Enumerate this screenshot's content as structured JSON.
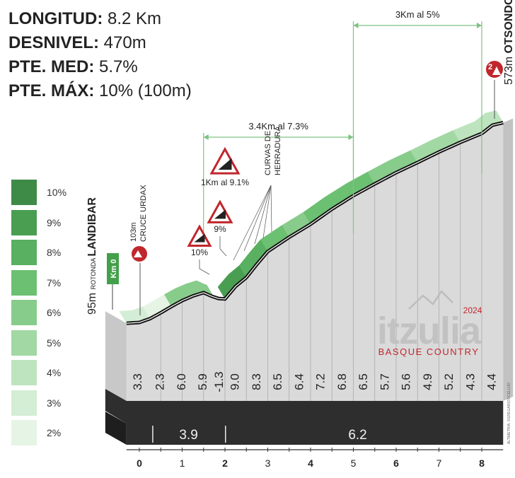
{
  "stats": [
    {
      "label": "LONGITUD:",
      "value": "8.2 Km"
    },
    {
      "label": "DESNIVEL:",
      "value": "470m"
    },
    {
      "label": "PTE. MED:",
      "value": "5.7%"
    },
    {
      "label": "PTE. MÁX:",
      "value": "10% (100m)"
    }
  ],
  "legend": [
    {
      "label": "10%",
      "color": "#3e8a47"
    },
    {
      "label": "9%",
      "color": "#4a9e52"
    },
    {
      "label": "8%",
      "color": "#58b060"
    },
    {
      "label": "7%",
      "color": "#6cc071"
    },
    {
      "label": "6%",
      "color": "#88cc8b"
    },
    {
      "label": "5%",
      "color": "#a2d8a4"
    },
    {
      "label": "4%",
      "color": "#bde4be"
    },
    {
      "label": "3%",
      "color": "#d4edd5"
    },
    {
      "label": "2%",
      "color": "#e6f4e6"
    }
  ],
  "annotations": {
    "start": {
      "alt": "95m",
      "small": "ROTONDA",
      "name": "LANDIBAR"
    },
    "km0": "Km 0",
    "sprint": {
      "alt": "103m",
      "name": "CRUCE URDAX"
    },
    "finish": {
      "alt": "573m",
      "name": "OTSONDO",
      "category": "2"
    },
    "horquillas": [
      "CURVAS DE",
      "HERRADURA"
    ],
    "seg1": "3.4Km al 7.3%",
    "seg2": "3Km al 5%",
    "warn1": "1Km al 9.1%",
    "warn2": "9%",
    "warn3": "10%"
  },
  "brand": {
    "name": "itzulia",
    "year": "2024",
    "sub": "BASQUE COUNTRY",
    "credit": "ALTIMETRIA: ©GREGARIOS/CELUJO"
  },
  "colors": {
    "ink": "#222222",
    "brandRed": "#c0272d",
    "side": "#c8c8c8",
    "baseDark": "#2e2e2e"
  },
  "chart_data": {
    "type": "area",
    "xlabel": "",
    "ylabel": "",
    "xlim": [
      0,
      8.2
    ],
    "x_ticks": [
      0,
      1,
      2,
      3,
      4,
      5,
      6,
      7,
      8
    ],
    "profile": {
      "x": [
        -0.3,
        0,
        0.25,
        0.5,
        0.75,
        1.0,
        1.25,
        1.5,
        1.7,
        1.85,
        2.0,
        2.25,
        2.5,
        2.75,
        3.0,
        3.5,
        4.0,
        4.5,
        5.0,
        5.5,
        6.0,
        6.5,
        7.0,
        7.5,
        8.0,
        8.25,
        8.5
      ],
      "y": [
        95,
        97,
        106,
        120,
        135,
        149,
        160,
        168,
        159,
        154,
        153,
        183,
        204,
        236,
        266,
        300,
        331,
        367,
        399,
        427,
        454,
        478,
        503,
        526,
        547,
        567,
        573
      ]
    },
    "segments": [
      {
        "from": -0.3,
        "to": 0.25,
        "gradient": "3.3"
      },
      {
        "from": 0.25,
        "to": 0.75,
        "gradient": "2.3"
      },
      {
        "from": 0.75,
        "to": 1.25,
        "gradient": "6.0"
      },
      {
        "from": 1.25,
        "to": 1.75,
        "gradient": "5.9"
      },
      {
        "from": 1.75,
        "to": 2.0,
        "gradient": "-1.3"
      },
      {
        "from": 2.0,
        "to": 2.5,
        "gradient": "9.0"
      },
      {
        "from": 2.5,
        "to": 3.0,
        "gradient": "8.3"
      },
      {
        "from": 3.0,
        "to": 3.5,
        "gradient": "6.5"
      },
      {
        "from": 3.5,
        "to": 4.0,
        "gradient": "6.4"
      },
      {
        "from": 4.0,
        "to": 4.5,
        "gradient": "7.2"
      },
      {
        "from": 4.5,
        "to": 5.0,
        "gradient": "6.8"
      },
      {
        "from": 5.0,
        "to": 5.5,
        "gradient": "6.5"
      },
      {
        "from": 5.5,
        "to": 6.0,
        "gradient": "5.7"
      },
      {
        "from": 6.0,
        "to": 6.5,
        "gradient": "5.6"
      },
      {
        "from": 6.5,
        "to": 7.0,
        "gradient": "4.9"
      },
      {
        "from": 7.0,
        "to": 7.5,
        "gradient": "5.2"
      },
      {
        "from": 7.5,
        "to": 8.0,
        "gradient": "4.3"
      },
      {
        "from": 8.0,
        "to": 8.5,
        "gradient": "4.4"
      }
    ],
    "summary_blocks": [
      {
        "from": 0.3,
        "to": 2.0,
        "label": "3.9"
      },
      {
        "from": 2.0,
        "to": 8.2,
        "label": "6.2"
      }
    ]
  }
}
